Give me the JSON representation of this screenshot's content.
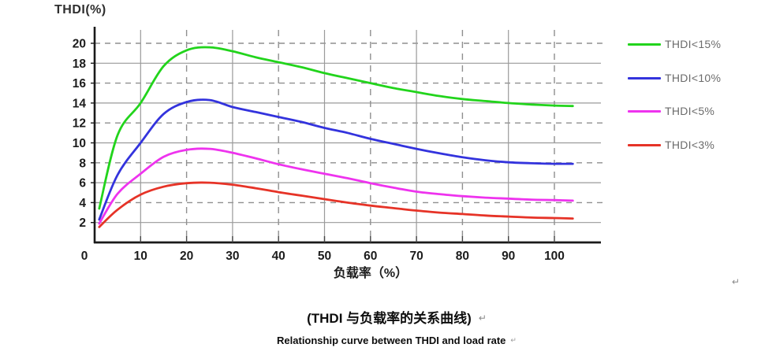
{
  "page": {
    "background": "#ffffff"
  },
  "chart_data": {
    "type": "line",
    "title": "",
    "ylabel": "THDI(%)",
    "xlabel": "负载率（%）",
    "x_ticks": [
      0,
      10,
      20,
      30,
      40,
      50,
      60,
      70,
      80,
      90,
      100
    ],
    "y_ticks": [
      2,
      4,
      6,
      8,
      10,
      12,
      14,
      16,
      18,
      20
    ],
    "xlim": [
      0,
      110
    ],
    "ylim": [
      0,
      21
    ],
    "grid": {
      "solid_y": [
        2,
        6,
        10,
        14,
        18
      ],
      "dashed_y": [
        4,
        8,
        12,
        16,
        20
      ],
      "solid_x": [
        10,
        30,
        50,
        70,
        90
      ],
      "dashed_x": [
        20,
        40,
        60,
        80,
        100
      ]
    },
    "legend_position": "right",
    "axis_color": "#1a1a1a",
    "grid_color": "#9a9a9a",
    "tick_label_color": "#1c1c1c",
    "x": [
      1,
      5,
      10,
      15,
      20,
      25,
      30,
      35,
      40,
      45,
      50,
      55,
      60,
      65,
      70,
      75,
      80,
      85,
      90,
      95,
      100,
      104
    ],
    "series": [
      {
        "name": "THDI<15%",
        "color": "#22d41c",
        "values": [
          3.4,
          10.8,
          14.0,
          17.7,
          19.3,
          19.6,
          19.2,
          18.6,
          18.1,
          17.6,
          17.0,
          16.5,
          16.0,
          15.5,
          15.1,
          14.7,
          14.4,
          14.2,
          14.0,
          13.85,
          13.75,
          13.7
        ]
      },
      {
        "name": "THDI<10%",
        "color": "#3333dd",
        "values": [
          2.3,
          6.8,
          10.0,
          12.9,
          14.1,
          14.3,
          13.6,
          13.1,
          12.6,
          12.1,
          11.5,
          11.0,
          10.4,
          9.9,
          9.4,
          8.95,
          8.55,
          8.25,
          8.05,
          7.95,
          7.9,
          7.9
        ]
      },
      {
        "name": "THDI<5%",
        "color": "#ee33ee",
        "values": [
          1.9,
          4.9,
          6.9,
          8.6,
          9.3,
          9.4,
          9.0,
          8.45,
          7.85,
          7.35,
          6.9,
          6.45,
          5.95,
          5.5,
          5.1,
          4.85,
          4.65,
          4.5,
          4.4,
          4.3,
          4.25,
          4.2
        ]
      },
      {
        "name": "THDI<3%",
        "color": "#e63327",
        "values": [
          1.55,
          3.3,
          4.8,
          5.6,
          5.95,
          6.0,
          5.8,
          5.45,
          5.05,
          4.7,
          4.35,
          4.0,
          3.7,
          3.45,
          3.2,
          3.0,
          2.85,
          2.7,
          2.6,
          2.5,
          2.45,
          2.4
        ]
      }
    ]
  },
  "captions": {
    "zh": "(THDI 与负载率的关系曲线)",
    "en": "Relationship curve between THDI and load rate",
    "return_mark": "↵"
  }
}
